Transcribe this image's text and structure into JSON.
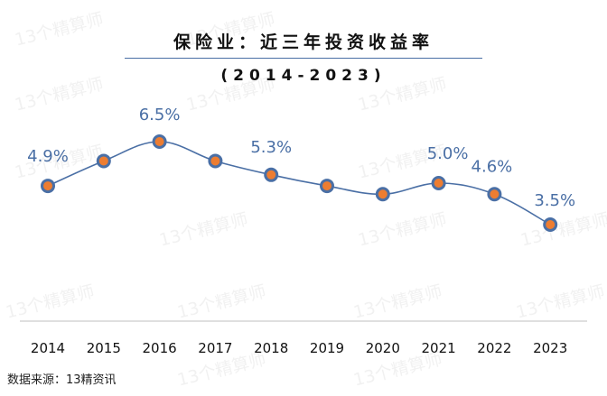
{
  "chart_data": {
    "type": "line",
    "title": "保险业：近三年投资收益率",
    "subtitle": "(2014-2023)",
    "categories": [
      "2014",
      "2015",
      "2016",
      "2017",
      "2018",
      "2019",
      "2020",
      "2021",
      "2022",
      "2023"
    ],
    "series": [
      {
        "name": "投资收益率",
        "values": [
          4.9,
          5.8,
          6.5,
          5.8,
          5.3,
          4.9,
          4.6,
          5.0,
          4.6,
          3.5
        ],
        "data_labels": [
          "4.9%",
          "",
          "6.5%",
          "",
          "5.3%",
          "",
          "",
          "5.0%",
          "4.6%",
          "3.5%"
        ]
      }
    ],
    "ylim": [
      0,
      10
    ],
    "grid": false,
    "legend": "none",
    "xlabel": "",
    "ylabel": ""
  },
  "source": "数据来源：13精资讯",
  "watermark": "13个精算师",
  "colors": {
    "line": "#4a6fa5",
    "marker_fill": "#ed7d31",
    "marker_edge": "#4a6fa5",
    "label": "#4a6fa5",
    "axis": "#bfbfbf"
  }
}
